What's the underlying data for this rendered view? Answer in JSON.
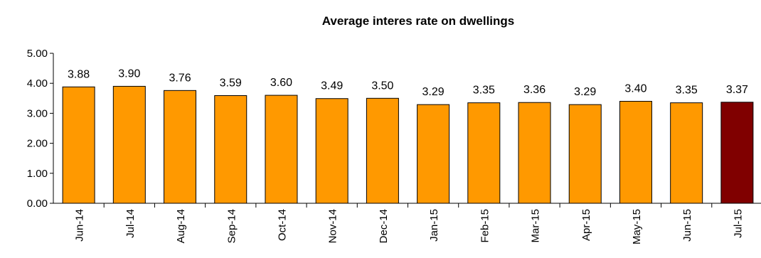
{
  "chart_data": {
    "type": "bar",
    "title": "Average interes rate on dwellings",
    "categories": [
      "Jun-14",
      "Jul-14",
      "Aug-14",
      "Sep-14",
      "Oct-14",
      "Nov-14",
      "Dec-14",
      "Jan-15",
      "Feb-15",
      "Mar-15",
      "Apr-15",
      "May-15",
      "Jun-15",
      "Jul-15"
    ],
    "values": [
      3.88,
      3.9,
      3.76,
      3.59,
      3.6,
      3.49,
      3.5,
      3.29,
      3.35,
      3.36,
      3.29,
      3.4,
      3.35,
      3.37
    ],
    "value_labels": [
      "3.88",
      "3.90",
      "3.76",
      "3.59",
      "3.60",
      "3.49",
      "3.50",
      "3.29",
      "3.35",
      "3.36",
      "3.29",
      "3.40",
      "3.35",
      "3.37"
    ],
    "y_ticks": [
      "0.00",
      "1.00",
      "2.00",
      "3.00",
      "4.00",
      "5.00"
    ],
    "ylim": [
      0,
      5
    ],
    "grid": false,
    "legend": "none",
    "colors": {
      "bar": "#FF9900",
      "highlight_bar": "#800000",
      "bar_border": "#000000",
      "axis": "#000000"
    },
    "highlight_index": 13
  }
}
